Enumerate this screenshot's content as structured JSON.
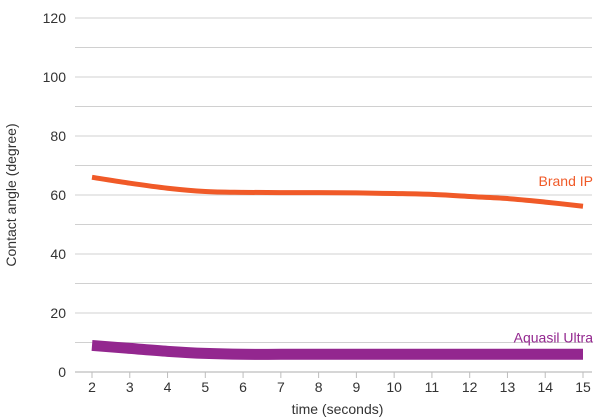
{
  "chart_data": {
    "type": "line",
    "xlabel": "time (seconds)",
    "ylabel": "Contact angle (degree)",
    "x": [
      2,
      3,
      4,
      5,
      6,
      7,
      8,
      9,
      10,
      11,
      12,
      13,
      14,
      15
    ],
    "ylim": [
      0,
      120
    ],
    "xlim": [
      2,
      15
    ],
    "y_ticks": [
      0,
      20,
      40,
      60,
      80,
      100,
      120
    ],
    "x_ticks": [
      2,
      3,
      4,
      5,
      6,
      7,
      8,
      9,
      10,
      11,
      12,
      13,
      14,
      15
    ],
    "grid": true,
    "series": [
      {
        "name": "Brand IP",
        "color": "#f05a28",
        "values": [
          66,
          64,
          62.3,
          61.2,
          60.9,
          60.8,
          60.8,
          60.7,
          60.5,
          60.2,
          59.5,
          58.8,
          57.6,
          56.2
        ]
      },
      {
        "name": "Aquasil Ultra",
        "color": "#93278f",
        "values": [
          9,
          8,
          7,
          6.3,
          6,
          6,
          6,
          6,
          6,
          6,
          6,
          6,
          6,
          6
        ]
      }
    ]
  }
}
